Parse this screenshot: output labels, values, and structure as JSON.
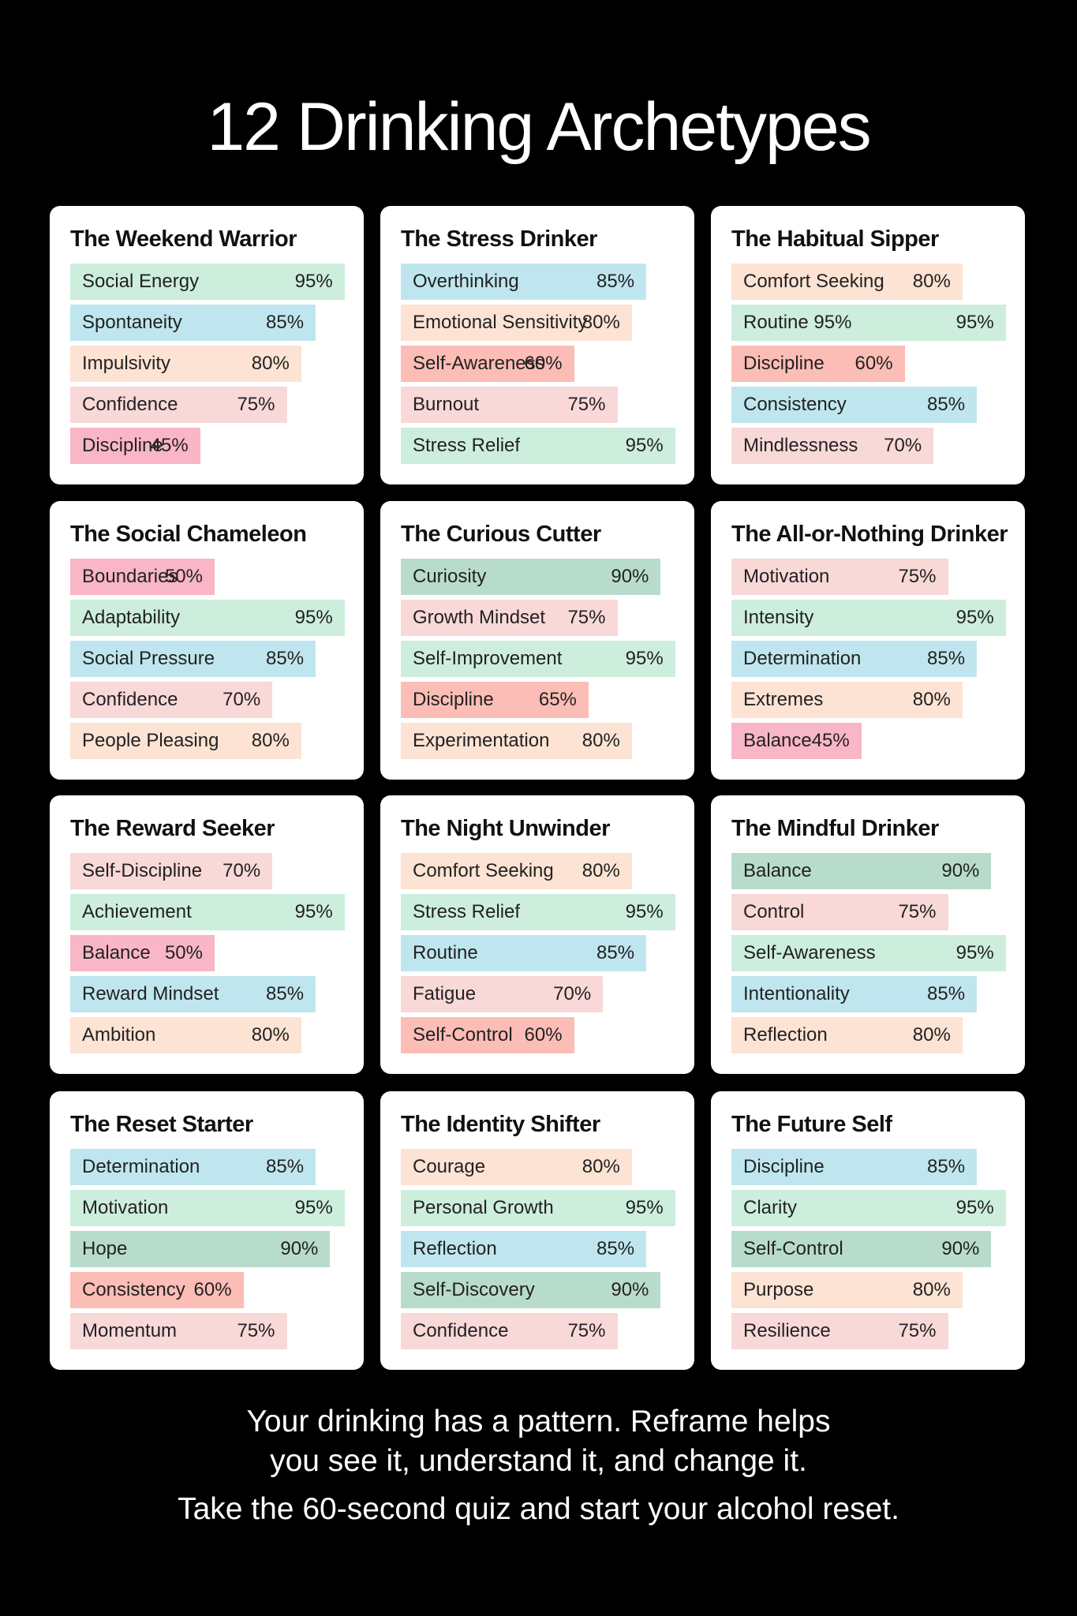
{
  "title": "12 Drinking Archetypes",
  "cards": [
    {
      "title": "The Weekend Warrior",
      "items": [
        {
          "label": "Social Energy",
          "value": 95,
          "value_label": "95%",
          "color": "#cdeedd"
        },
        {
          "label": "Spontaneity",
          "value": 85,
          "value_label": "85%",
          "color": "#bfe6ee"
        },
        {
          "label": "Impulsivity",
          "value": 80,
          "value_label": "80%",
          "color": "#fde3d3"
        },
        {
          "label": "Confidence",
          "value": 75,
          "value_label": "75%",
          "color": "#f9d8d8"
        },
        {
          "label": "Discipline",
          "value": 45,
          "value_label": "45%",
          "color": "#f8b6c7"
        }
      ]
    },
    {
      "title": "The Stress Drinker",
      "items": [
        {
          "label": "Overthinking",
          "value": 85,
          "value_label": "85%",
          "color": "#bfe6ee"
        },
        {
          "label": "Emotional Sensitivity",
          "value": 80,
          "value_label": "80%",
          "color": "#fde3d3"
        },
        {
          "label": "Self-Awareness",
          "value": 60,
          "value_label": "60%",
          "color": "#fbbdb5"
        },
        {
          "label": "Burnout",
          "value": 75,
          "value_label": "75%",
          "color": "#f9d8d8"
        },
        {
          "label": "Stress Relief",
          "value": 95,
          "value_label": "95%",
          "color": "#cdeedd"
        }
      ]
    },
    {
      "title": "The Habitual Sipper",
      "items": [
        {
          "label": "Comfort Seeking",
          "value": 80,
          "value_label": "80%",
          "color": "#fde3d3"
        },
        {
          "label": "Routine 95%",
          "value": 95,
          "value_label": "95%",
          "color": "#cdeedd"
        },
        {
          "label": "Discipline",
          "value": 60,
          "value_label": "60%",
          "color": "#fbbdb5"
        },
        {
          "label": "Consistency",
          "value": 85,
          "value_label": "85%",
          "color": "#bfe6ee"
        },
        {
          "label": "Mindlessness",
          "value": 70,
          "value_label": "70%",
          "color": "#f9d8d8"
        }
      ]
    },
    {
      "title": "The Social Chameleon",
      "items": [
        {
          "label": "Boundaries",
          "value": 50,
          "value_label": "50%",
          "color": "#f8b6c7"
        },
        {
          "label": "Adaptability",
          "value": 95,
          "value_label": "95%",
          "color": "#cdeedd"
        },
        {
          "label": "Social Pressure",
          "value": 85,
          "value_label": "85%",
          "color": "#bfe6ee"
        },
        {
          "label": "Confidence",
          "value": 70,
          "value_label": "70%",
          "color": "#f9d8d8"
        },
        {
          "label": "People Pleasing",
          "value": 80,
          "value_label": "80%",
          "color": "#fde3d3"
        }
      ]
    },
    {
      "title": "The Curious Cutter",
      "items": [
        {
          "label": "Curiosity",
          "value": 90,
          "value_label": "90%",
          "color": "#b8dccb"
        },
        {
          "label": "Growth Mindset",
          "value": 75,
          "value_label": "75%",
          "color": "#f9d8d8"
        },
        {
          "label": "Self-Improvement",
          "value": 95,
          "value_label": "95%",
          "color": "#cdeedd"
        },
        {
          "label": "Discipline",
          "value": 65,
          "value_label": "65%",
          "color": "#fbbdb5"
        },
        {
          "label": "Experimentation",
          "value": 80,
          "value_label": "80%",
          "color": "#fde3d3"
        }
      ]
    },
    {
      "title": "The All-or-Nothing Drinker",
      "items": [
        {
          "label": "Motivation",
          "value": 75,
          "value_label": "75%",
          "color": "#f9d8d8"
        },
        {
          "label": "Intensity",
          "value": 95,
          "value_label": "95%",
          "color": "#cdeedd"
        },
        {
          "label": "Determination",
          "value": 85,
          "value_label": "85%",
          "color": "#bfe6ee"
        },
        {
          "label": "Extremes",
          "value": 80,
          "value_label": "80%",
          "color": "#fde3d3"
        },
        {
          "label": "Balance",
          "value": 45,
          "value_label": "45%",
          "color": "#f8b6c7"
        }
      ]
    },
    {
      "title": "The Reward Seeker",
      "items": [
        {
          "label": "Self-Discipline",
          "value": 70,
          "value_label": "70%",
          "color": "#f9d8d8"
        },
        {
          "label": "Achievement",
          "value": 95,
          "value_label": "95%",
          "color": "#cdeedd"
        },
        {
          "label": "Balance",
          "value": 50,
          "value_label": "50%",
          "color": "#f8b6c7"
        },
        {
          "label": "Reward Mindset",
          "value": 85,
          "value_label": "85%",
          "color": "#bfe6ee"
        },
        {
          "label": "Ambition",
          "value": 80,
          "value_label": "80%",
          "color": "#fde3d3"
        }
      ]
    },
    {
      "title": "The Night Unwinder",
      "items": [
        {
          "label": "Comfort Seeking",
          "value": 80,
          "value_label": "80%",
          "color": "#fde3d3"
        },
        {
          "label": "Stress Relief",
          "value": 95,
          "value_label": "95%",
          "color": "#cdeedd"
        },
        {
          "label": "Routine",
          "value": 85,
          "value_label": "85%",
          "color": "#bfe6ee"
        },
        {
          "label": "Fatigue",
          "value": 70,
          "value_label": "70%",
          "color": "#f9d8d8"
        },
        {
          "label": "Self-Control",
          "value": 60,
          "value_label": "60%",
          "color": "#fbbdb5"
        }
      ]
    },
    {
      "title": "The Mindful Drinker",
      "items": [
        {
          "label": "Balance",
          "value": 90,
          "value_label": "90%",
          "color": "#b8dccb"
        },
        {
          "label": "Control",
          "value": 75,
          "value_label": "75%",
          "color": "#f9d8d8"
        },
        {
          "label": "Self-Awareness",
          "value": 95,
          "value_label": "95%",
          "color": "#cdeedd"
        },
        {
          "label": "Intentionality",
          "value": 85,
          "value_label": "85%",
          "color": "#bfe6ee"
        },
        {
          "label": "Reflection",
          "value": 80,
          "value_label": "80%",
          "color": "#fde3d3"
        }
      ]
    },
    {
      "title": "The Reset Starter",
      "items": [
        {
          "label": "Determination",
          "value": 85,
          "value_label": "85%",
          "color": "#bfe6ee"
        },
        {
          "label": "Motivation",
          "value": 95,
          "value_label": "95%",
          "color": "#cdeedd"
        },
        {
          "label": "Hope",
          "value": 90,
          "value_label": "90%",
          "color": "#b8dccb"
        },
        {
          "label": "Consistency",
          "value": 60,
          "value_label": "60%",
          "color": "#fbbdb5"
        },
        {
          "label": "Momentum",
          "value": 75,
          "value_label": "75%",
          "color": "#f9d8d8"
        }
      ]
    },
    {
      "title": "The Identity Shifter",
      "items": [
        {
          "label": "Courage",
          "value": 80,
          "value_label": "80%",
          "color": "#fde3d3"
        },
        {
          "label": "Personal Growth",
          "value": 95,
          "value_label": "95%",
          "color": "#cdeedd"
        },
        {
          "label": "Reflection",
          "value": 85,
          "value_label": "85%",
          "color": "#bfe6ee"
        },
        {
          "label": "Self-Discovery",
          "value": 90,
          "value_label": "90%",
          "color": "#b8dccb"
        },
        {
          "label": "Confidence",
          "value": 75,
          "value_label": "75%",
          "color": "#f9d8d8"
        }
      ]
    },
    {
      "title": "The Future Self",
      "items": [
        {
          "label": "Discipline",
          "value": 85,
          "value_label": "85%",
          "color": "#bfe6ee"
        },
        {
          "label": "Clarity",
          "value": 95,
          "value_label": "95%",
          "color": "#cdeedd"
        },
        {
          "label": "Self-Control",
          "value": 90,
          "value_label": "90%",
          "color": "#b8dccb"
        },
        {
          "label": "Purpose",
          "value": 80,
          "value_label": "80%",
          "color": "#fde3d3"
        },
        {
          "label": "Resilience",
          "value": 75,
          "value_label": "75%",
          "color": "#f9d8d8"
        }
      ]
    }
  ],
  "footer": {
    "lines": [
      "Your drinking has a pattern. Reframe helps",
      "you see it, understand it, and change it.",
      "Take the 60-second quiz and start your alcohol reset."
    ]
  }
}
